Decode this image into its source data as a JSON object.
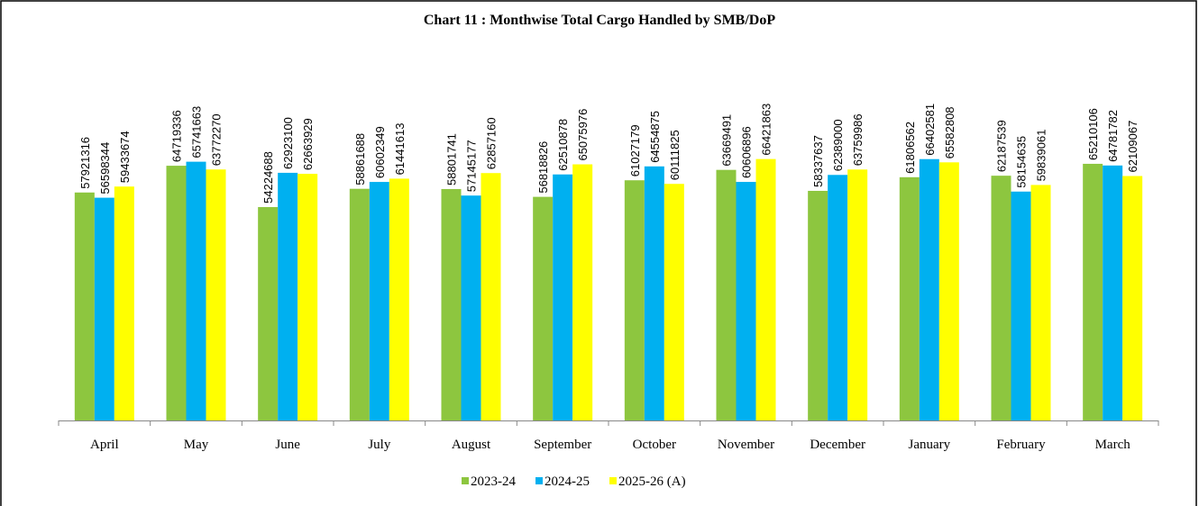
{
  "chart_data": {
    "type": "bar",
    "title": "Chart 11 : Monthwise Total Cargo Handled by SMB/DoP",
    "categories": [
      "April",
      "May",
      "June",
      "July",
      "August",
      "September",
      "October",
      "November",
      "December",
      "January",
      "February",
      "March"
    ],
    "series": [
      {
        "name": "2023-24",
        "color": "#8dc63f",
        "values": [
          57921316,
          64719336,
          54224688,
          58861688,
          58801741,
          56818826,
          61027179,
          63669491,
          58337637,
          61806562,
          62187539,
          65210106
        ]
      },
      {
        "name": "2024-25",
        "color": "#00b0f0",
        "values": [
          56598344,
          65741663,
          62923100,
          60602349,
          57145177,
          62510878,
          64554875,
          60606896,
          62389000,
          66402581,
          58154635,
          64781782
        ]
      },
      {
        "name": "2025-26 (A)",
        "color": "#ffff00",
        "values": [
          59433674,
          63772270,
          62663929,
          61441613,
          62857160,
          65075976,
          60111825,
          66421863,
          63759986,
          65582808,
          59839061,
          62109067
        ]
      }
    ],
    "ylim": [
      0,
      70000000
    ],
    "legend": "bottom"
  }
}
